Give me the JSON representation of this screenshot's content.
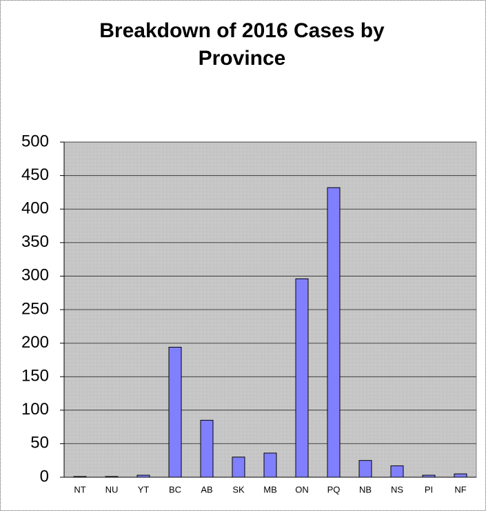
{
  "chart_data": {
    "type": "bar",
    "title": "Breakdown of 2016 Cases by Province",
    "categories": [
      "NT",
      "NU",
      "YT",
      "BC",
      "AB",
      "SK",
      "MB",
      "ON",
      "PQ",
      "NB",
      "NS",
      "PI",
      "NF"
    ],
    "values": [
      1,
      1,
      3,
      194,
      85,
      30,
      36,
      296,
      432,
      25,
      17,
      3,
      5
    ],
    "color": "#8080ff",
    "ylim": [
      0,
      500
    ],
    "yticks": [
      0,
      50,
      100,
      150,
      200,
      250,
      300,
      350,
      400,
      450,
      500
    ],
    "grid": true
  }
}
